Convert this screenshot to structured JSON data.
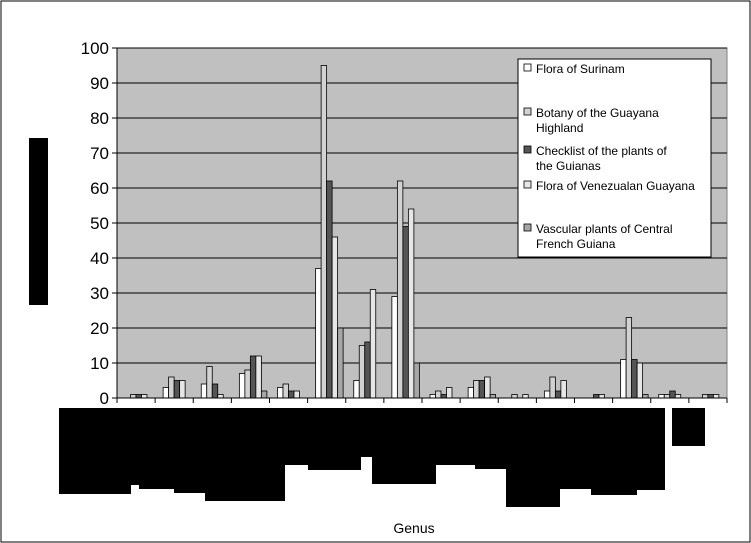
{
  "chart_data": {
    "type": "bar",
    "xlabel": "Genus",
    "ylabel": "",
    "ylim": [
      0,
      100
    ],
    "yticks": [
      0,
      10,
      20,
      30,
      40,
      50,
      60,
      70,
      80,
      90,
      100
    ],
    "grid": true,
    "legend_position": "top-right",
    "plot_background": "#c0c0c0",
    "series": [
      {
        "name": "Flora of Surinam",
        "color": "#ffffff",
        "values": [
          0,
          3,
          4,
          7,
          3,
          37,
          5,
          29,
          1,
          3,
          0,
          2,
          0,
          11,
          1,
          0
        ]
      },
      {
        "name": "Botany of the Guayana Highland",
        "color": "#d2d2d2",
        "values": [
          1,
          6,
          9,
          8,
          4,
          95,
          15,
          62,
          2,
          5,
          1,
          6,
          0,
          23,
          1,
          1
        ]
      },
      {
        "name": "Checklist of the plants of the Guianas",
        "color": "#555555",
        "values": [
          1,
          5,
          4,
          12,
          2,
          62,
          16,
          49,
          1,
          5,
          0,
          2,
          1,
          11,
          2,
          1
        ]
      },
      {
        "name": "Flora of Venezualan Guayana",
        "color": "#e6e6e6",
        "values": [
          1,
          5,
          1,
          12,
          2,
          46,
          31,
          54,
          3,
          6,
          1,
          5,
          1,
          10,
          1,
          1
        ]
      },
      {
        "name": "Vascular plants of Central French Guiana",
        "color": "#a6a6a6",
        "values": [
          0,
          0,
          0,
          2,
          0,
          20,
          0,
          10,
          0,
          1,
          0,
          0,
          0,
          1,
          0,
          0
        ]
      }
    ]
  }
}
